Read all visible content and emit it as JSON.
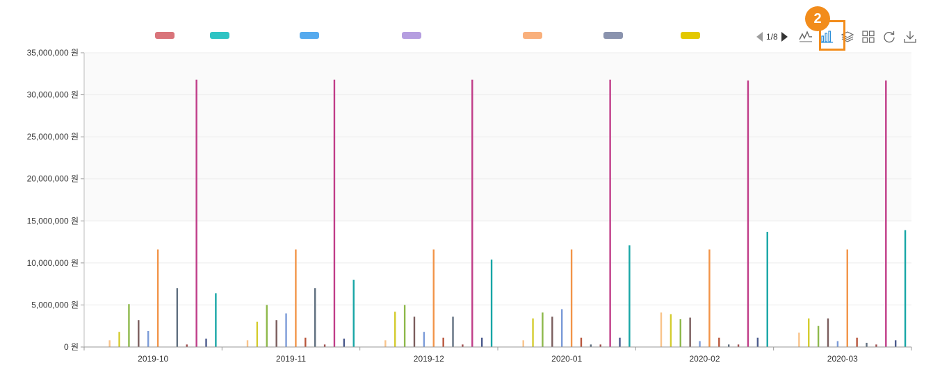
{
  "toolbar": {
    "pager_text": "1/8",
    "icons": [
      "line-chart-icon",
      "bar-chart-icon",
      "stack-icon",
      "grid-icon",
      "refresh-icon",
      "download-icon"
    ]
  },
  "annotation": {
    "step_number": "2",
    "color": "#f28c1b"
  },
  "legend": {
    "swatches": [
      {
        "color": "#d9747a"
      },
      {
        "color": "#2ec4c4"
      },
      {
        "color": "#55aaee"
      },
      {
        "color": "#b59ee0"
      },
      {
        "color": "#f9b07c"
      },
      {
        "color": "#8a93ae"
      },
      {
        "color": "#e3c800"
      }
    ]
  },
  "chart_data": {
    "type": "bar",
    "categories": [
      "2019-10",
      "2019-11",
      "2019-12",
      "2020-01",
      "2020-02",
      "2020-03"
    ],
    "y_tick_labels": [
      "0 원",
      "5,000,000 원",
      "10,000,000 원",
      "15,000,000 원",
      "20,000,000 원",
      "25,000,000 원",
      "30,000,000 원",
      "35,000,000 원"
    ],
    "ylim": [
      0,
      35000000
    ],
    "grid": true,
    "legend_position": "top",
    "series": [
      {
        "color": "#f9c48a",
        "values": [
          800000,
          800000,
          800000,
          800000,
          4100000,
          1700000
        ]
      },
      {
        "color": "#d4cc2e",
        "values": [
          1800000,
          3000000,
          4200000,
          3400000,
          3900000,
          3400000
        ]
      },
      {
        "color": "#8db84a",
        "values": [
          5100000,
          5000000,
          5000000,
          4100000,
          3300000,
          2500000
        ]
      },
      {
        "color": "#7a5c5c",
        "values": [
          3200000,
          3200000,
          3600000,
          3600000,
          3500000,
          3400000
        ]
      },
      {
        "color": "#7b9bd8",
        "values": [
          1900000,
          4000000,
          1800000,
          4500000,
          700000,
          700000
        ]
      },
      {
        "color": "#f29448",
        "values": [
          11600000,
          11600000,
          11600000,
          11600000,
          11600000,
          11600000
        ]
      },
      {
        "color": "#b8563c",
        "values": [
          null,
          1100000,
          1100000,
          1100000,
          1100000,
          1100000
        ]
      },
      {
        "color": "#607080",
        "values": [
          7000000,
          7000000,
          3600000,
          300000,
          300000,
          500000
        ]
      },
      {
        "color": "#a05050",
        "values": [
          300000,
          300000,
          300000,
          300000,
          300000,
          300000
        ]
      },
      {
        "color": "#c03c88",
        "values": [
          31800000,
          31800000,
          31800000,
          31800000,
          31700000,
          31700000
        ]
      },
      {
        "color": "#4a5a8c",
        "values": [
          1000000,
          1000000,
          1100000,
          1100000,
          1100000,
          800000
        ]
      },
      {
        "color": "#17a6a6",
        "values": [
          6400000,
          8000000,
          10400000,
          12100000,
          13700000,
          13900000
        ]
      }
    ]
  }
}
